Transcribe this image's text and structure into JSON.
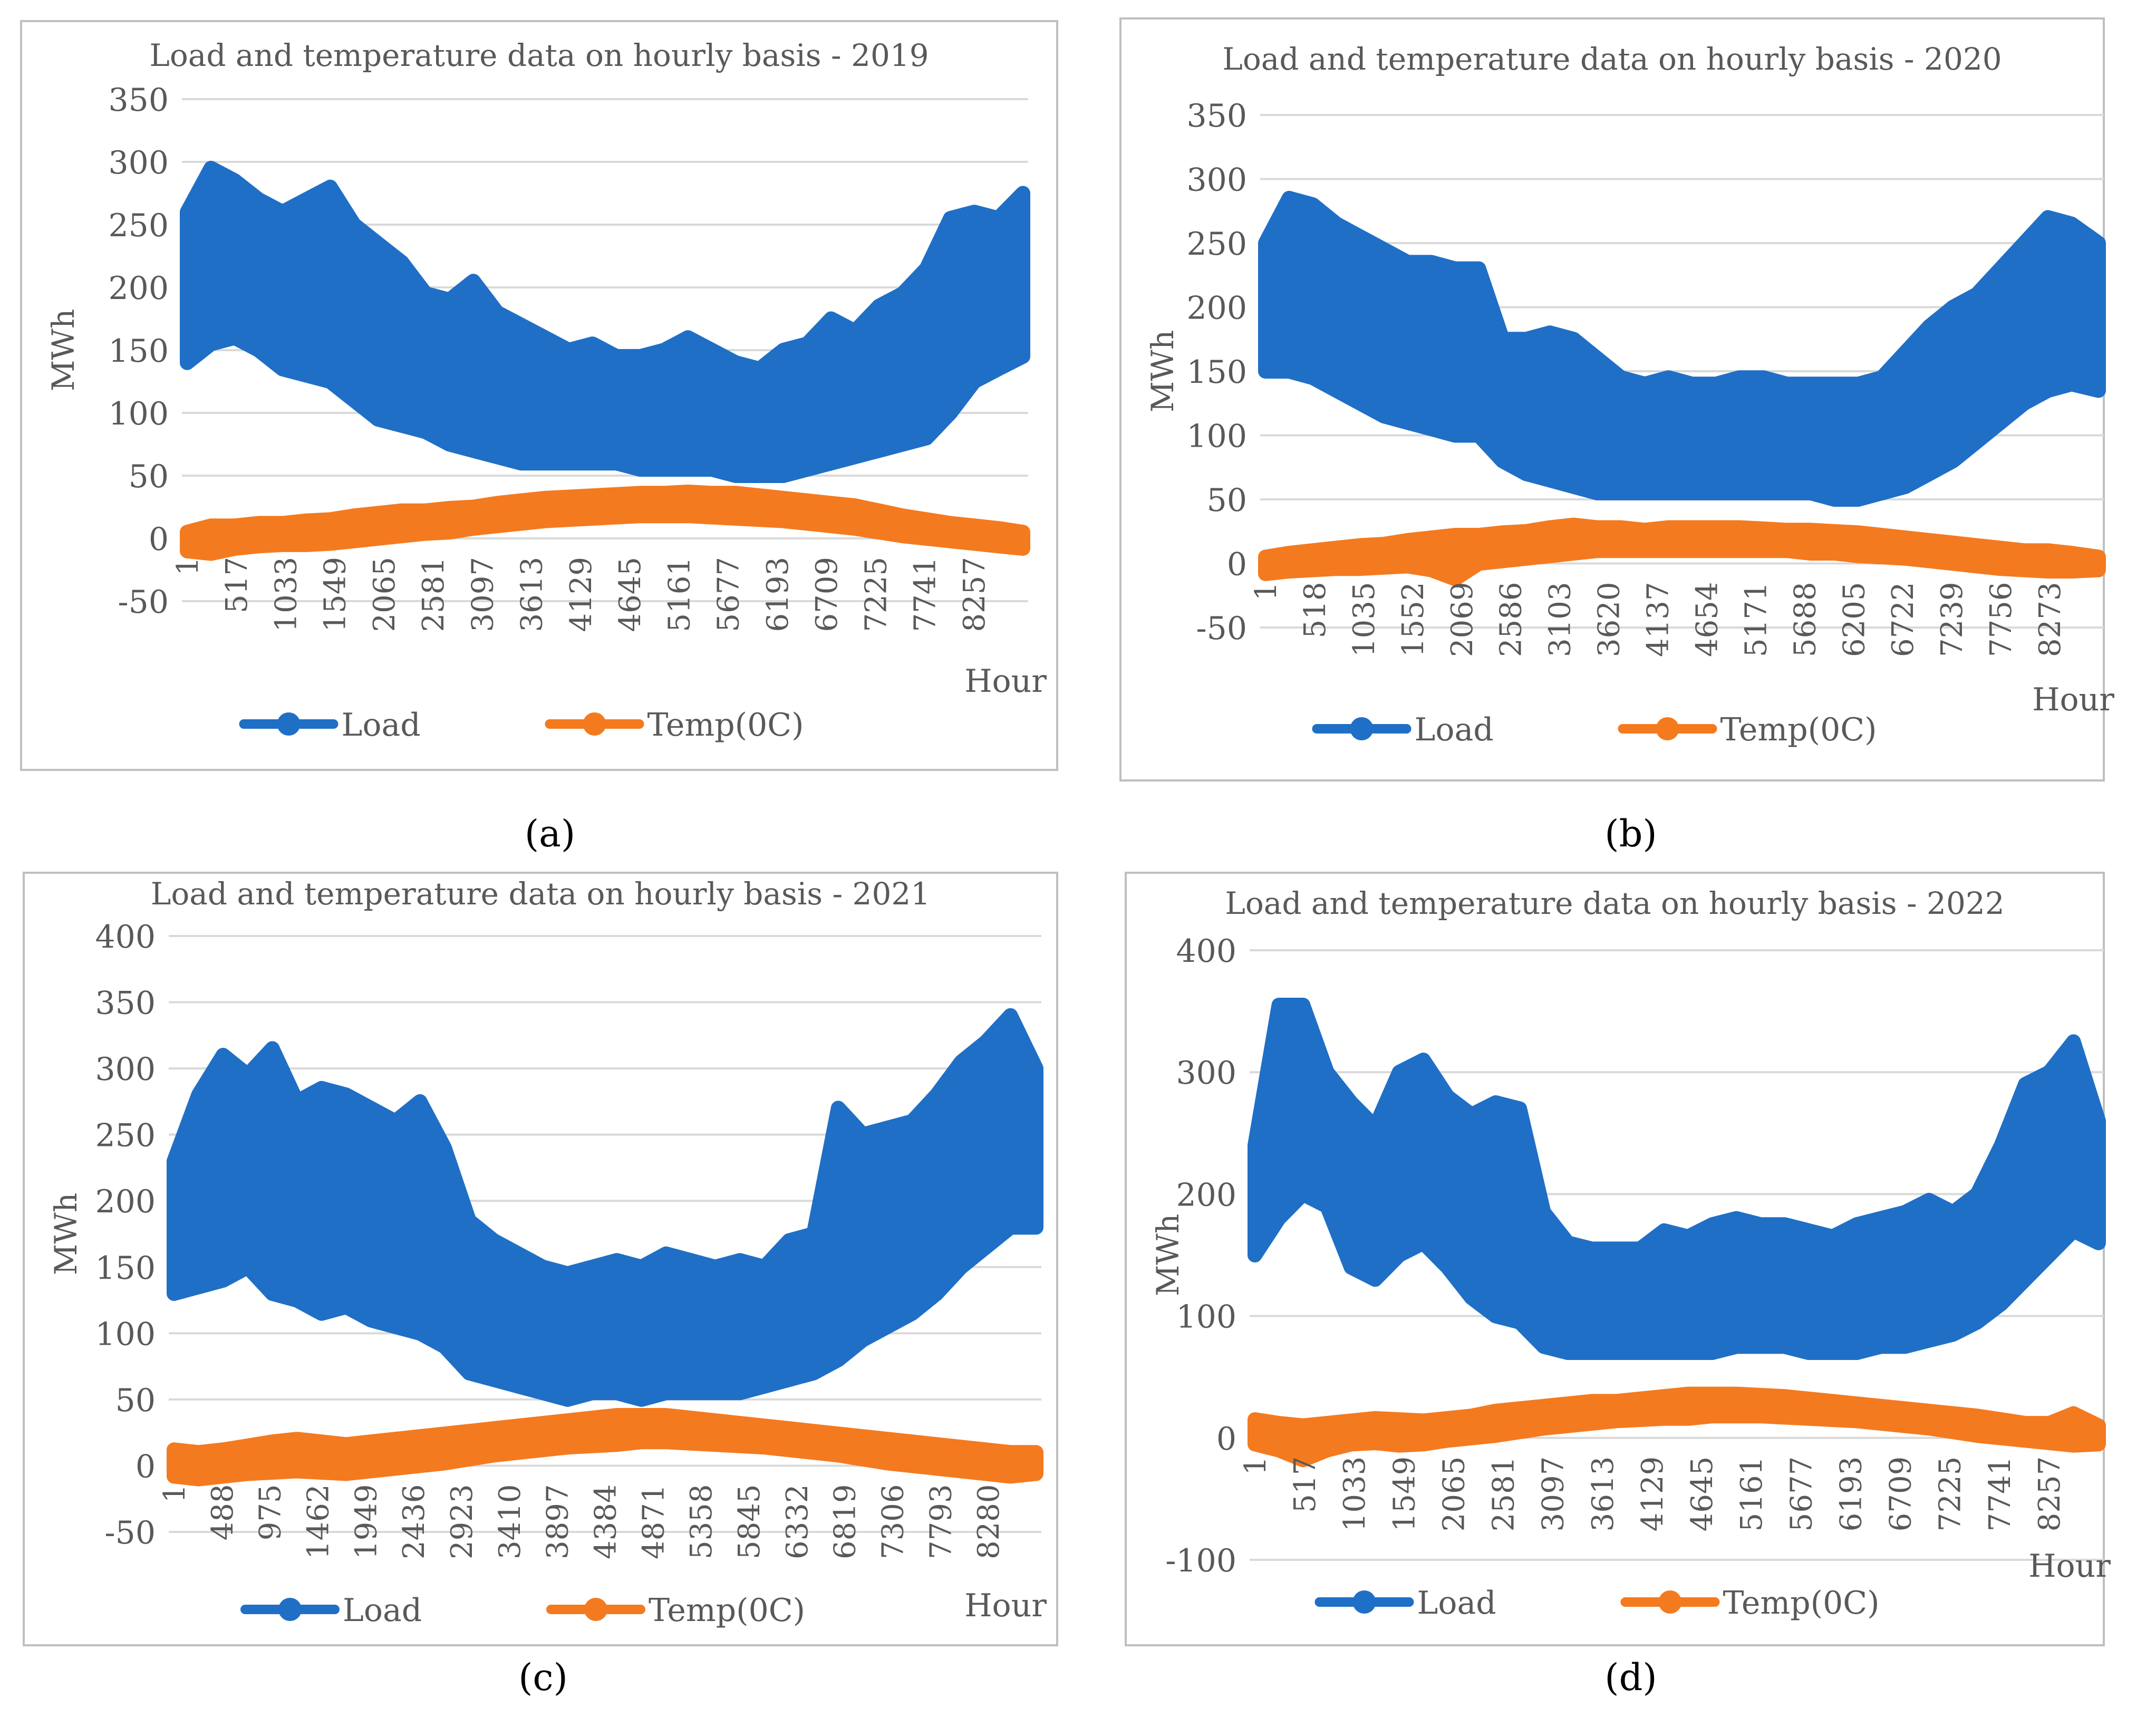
{
  "figure": {
    "panel_captions": [
      "(a)",
      "(b)",
      "(c)",
      "(d)"
    ],
    "colors": {
      "load": "#1F6FC6",
      "temp": "#F47A1F",
      "grid": "#D9D9D9",
      "text": "#595959",
      "frame": "#BFBFBF"
    }
  },
  "chart_data": [
    {
      "type": "line",
      "title": "Load and temperature data on hourly basis - 2019",
      "xlabel": "Hour",
      "ylabel": "MWh",
      "caption": "(a)",
      "ylim": [
        -50,
        350
      ],
      "ytick_step": 50,
      "xlim": [
        1,
        8760
      ],
      "x_ticks": [
        "1",
        "517",
        "1033",
        "1549",
        "2065",
        "2581",
        "3097",
        "3613",
        "4129",
        "4645",
        "5161",
        "5677",
        "6193",
        "6709",
        "7225",
        "7741",
        "8257"
      ],
      "legend": [
        "Load",
        "Temp(0C)"
      ],
      "legend_position": "bottom",
      "series": [
        {
          "name": "Load",
          "x": [
            1,
            250,
            500,
            750,
            1000,
            1250,
            1500,
            1750,
            2000,
            2250,
            2500,
            2750,
            3000,
            3250,
            3500,
            3750,
            4000,
            4250,
            4500,
            4750,
            5000,
            5250,
            5500,
            5750,
            6000,
            6250,
            6500,
            6750,
            7000,
            7250,
            7500,
            7750,
            8000,
            8250,
            8500,
            8760
          ],
          "upper": [
            260,
            295,
            285,
            270,
            260,
            270,
            280,
            250,
            235,
            220,
            195,
            190,
            205,
            180,
            170,
            160,
            150,
            155,
            145,
            145,
            150,
            160,
            150,
            140,
            135,
            150,
            155,
            175,
            165,
            185,
            195,
            215,
            255,
            260,
            255,
            275
          ],
          "lower": [
            140,
            155,
            160,
            150,
            135,
            130,
            125,
            110,
            95,
            90,
            85,
            75,
            70,
            65,
            60,
            60,
            60,
            60,
            60,
            55,
            55,
            55,
            55,
            50,
            50,
            50,
            55,
            60,
            65,
            70,
            75,
            80,
            100,
            125,
            135,
            145
          ]
        },
        {
          "name": "Temp(0C)",
          "x": [
            1,
            250,
            500,
            750,
            1000,
            1250,
            1500,
            1750,
            2000,
            2250,
            2500,
            2750,
            3000,
            3250,
            3500,
            3750,
            4000,
            4250,
            4500,
            4750,
            5000,
            5250,
            5500,
            5750,
            6000,
            6250,
            6500,
            6750,
            7000,
            7250,
            7500,
            7750,
            8000,
            8250,
            8500,
            8760
          ],
          "upper": [
            5,
            10,
            10,
            12,
            12,
            14,
            15,
            18,
            20,
            22,
            22,
            24,
            25,
            28,
            30,
            32,
            33,
            34,
            35,
            36,
            36,
            37,
            36,
            36,
            34,
            32,
            30,
            28,
            26,
            22,
            18,
            15,
            12,
            10,
            8,
            5
          ],
          "lower": [
            -10,
            -12,
            -8,
            -6,
            -5,
            -5,
            -4,
            -2,
            0,
            2,
            4,
            5,
            8,
            10,
            12,
            14,
            15,
            16,
            17,
            18,
            18,
            18,
            17,
            16,
            15,
            14,
            12,
            10,
            8,
            5,
            2,
            0,
            -2,
            -4,
            -6,
            -8
          ]
        }
      ]
    },
    {
      "type": "line",
      "title": "Load and temperature data on hourly basis - 2020",
      "xlabel": "Hour",
      "ylabel": "MWh",
      "caption": "(b)",
      "ylim": [
        -50,
        350
      ],
      "ytick_step": 50,
      "xlim": [
        1,
        8784
      ],
      "x_ticks": [
        "1",
        "518",
        "1035",
        "1552",
        "2069",
        "2586",
        "3103",
        "3620",
        "4137",
        "4654",
        "5171",
        "5688",
        "6205",
        "6722",
        "7239",
        "7756",
        "8273"
      ],
      "legend": [
        "Load",
        "Temp(0C)"
      ],
      "legend_position": "bottom",
      "series": [
        {
          "name": "Load",
          "x": [
            1,
            250,
            500,
            750,
            1000,
            1250,
            1500,
            1750,
            2000,
            2250,
            2500,
            2750,
            3000,
            3250,
            3500,
            3750,
            4000,
            4250,
            4500,
            4750,
            5000,
            5250,
            5500,
            5750,
            6000,
            6250,
            6500,
            6750,
            7000,
            7250,
            7500,
            7750,
            8000,
            8250,
            8500,
            8784
          ],
          "upper": [
            250,
            285,
            280,
            265,
            255,
            245,
            235,
            235,
            230,
            230,
            175,
            175,
            180,
            175,
            160,
            145,
            140,
            145,
            140,
            140,
            145,
            145,
            140,
            140,
            140,
            140,
            145,
            165,
            185,
            200,
            210,
            230,
            250,
            270,
            265,
            250
          ],
          "lower": [
            150,
            150,
            145,
            135,
            125,
            115,
            110,
            105,
            100,
            100,
            80,
            70,
            65,
            60,
            55,
            55,
            55,
            55,
            55,
            55,
            55,
            55,
            55,
            55,
            50,
            50,
            55,
            60,
            70,
            80,
            95,
            110,
            125,
            135,
            140,
            135
          ]
        },
        {
          "name": "Temp(0C)",
          "x": [
            1,
            250,
            500,
            750,
            1000,
            1250,
            1500,
            1750,
            2000,
            2250,
            2500,
            2750,
            3000,
            3250,
            3500,
            3750,
            4000,
            4250,
            4500,
            4750,
            5000,
            5250,
            5500,
            5750,
            6000,
            6250,
            6500,
            6750,
            7000,
            7250,
            7500,
            7750,
            8000,
            8250,
            8500,
            8784
          ],
          "upper": [
            5,
            8,
            10,
            12,
            14,
            15,
            18,
            20,
            22,
            22,
            24,
            25,
            28,
            30,
            28,
            28,
            26,
            28,
            28,
            28,
            28,
            27,
            26,
            26,
            25,
            24,
            22,
            20,
            18,
            16,
            14,
            12,
            10,
            10,
            8,
            5
          ],
          "lower": [
            -8,
            -6,
            -5,
            -4,
            -4,
            -3,
            -2,
            -5,
            -12,
            0,
            2,
            4,
            6,
            8,
            10,
            10,
            10,
            10,
            10,
            10,
            10,
            10,
            10,
            8,
            8,
            6,
            5,
            4,
            2,
            0,
            -2,
            -4,
            -5,
            -6,
            -6,
            -5
          ]
        }
      ]
    },
    {
      "type": "line",
      "title": "Load and temperature data on hourly basis - 2021",
      "xlabel": "Hour",
      "ylabel": "MWh",
      "caption": "(c)",
      "ylim": [
        -50,
        400
      ],
      "ytick_step": 50,
      "xlim": [
        1,
        8760
      ],
      "x_ticks": [
        "1",
        "488",
        "975",
        "1462",
        "1949",
        "2436",
        "2923",
        "3410",
        "3897",
        "4384",
        "4871",
        "5358",
        "5845",
        "6332",
        "6819",
        "7306",
        "7793",
        "8280"
      ],
      "legend": [
        "Load",
        "Temp(0C)"
      ],
      "legend_position": "bottom",
      "series": [
        {
          "name": "Load",
          "x": [
            1,
            250,
            500,
            750,
            1000,
            1250,
            1500,
            1750,
            2000,
            2250,
            2500,
            2750,
            3000,
            3250,
            3500,
            3750,
            4000,
            4250,
            4500,
            4750,
            5000,
            5250,
            5500,
            5750,
            6000,
            6250,
            6500,
            6750,
            7000,
            7250,
            7500,
            7750,
            8000,
            8250,
            8500,
            8760
          ],
          "upper": [
            230,
            280,
            310,
            295,
            315,
            275,
            285,
            280,
            270,
            260,
            275,
            240,
            185,
            170,
            160,
            150,
            145,
            150,
            155,
            150,
            160,
            155,
            150,
            155,
            150,
            170,
            175,
            270,
            250,
            255,
            260,
            280,
            305,
            320,
            340,
            300
          ],
          "lower": [
            130,
            135,
            140,
            150,
            130,
            125,
            115,
            120,
            110,
            105,
            100,
            90,
            70,
            65,
            60,
            55,
            50,
            55,
            55,
            50,
            55,
            55,
            55,
            55,
            60,
            65,
            70,
            80,
            95,
            105,
            115,
            130,
            150,
            165,
            180,
            180
          ]
        },
        {
          "name": "Temp(0C)",
          "x": [
            1,
            250,
            500,
            750,
            1000,
            1250,
            1500,
            1750,
            2000,
            2250,
            2500,
            2750,
            3000,
            3250,
            3500,
            3750,
            4000,
            4250,
            4500,
            4750,
            5000,
            5250,
            5500,
            5750,
            6000,
            6250,
            6500,
            6750,
            7000,
            7250,
            7500,
            7750,
            8000,
            8250,
            8500,
            8760
          ],
          "upper": [
            12,
            10,
            12,
            15,
            18,
            20,
            18,
            16,
            18,
            20,
            22,
            24,
            26,
            28,
            30,
            32,
            34,
            36,
            38,
            38,
            38,
            36,
            34,
            32,
            30,
            28,
            26,
            24,
            22,
            20,
            18,
            16,
            14,
            12,
            10,
            10
          ],
          "lower": [
            -8,
            -10,
            -8,
            -6,
            -5,
            -4,
            -5,
            -6,
            -4,
            -2,
            0,
            2,
            5,
            8,
            10,
            12,
            14,
            15,
            16,
            18,
            18,
            17,
            16,
            15,
            14,
            12,
            10,
            8,
            5,
            2,
            0,
            -2,
            -4,
            -6,
            -8,
            -6
          ]
        }
      ]
    },
    {
      "type": "line",
      "title": "Load and temperature data on hourly basis - 2022",
      "xlabel": "Hour",
      "ylabel": "MWh",
      "caption": "(d)",
      "ylim": [
        -100,
        400
      ],
      "ytick_step": 100,
      "xlim": [
        1,
        8760
      ],
      "x_ticks": [
        "1",
        "517",
        "1033",
        "1549",
        "2065",
        "2581",
        "3097",
        "3613",
        "4129",
        "4645",
        "5161",
        "5677",
        "6193",
        "6709",
        "7225",
        "7741",
        "8257"
      ],
      "legend": [
        "Load",
        "Temp(0C)"
      ],
      "legend_position": "bottom",
      "series": [
        {
          "name": "Load",
          "x": [
            1,
            250,
            500,
            750,
            1000,
            1250,
            1500,
            1750,
            2000,
            2250,
            2500,
            2750,
            3000,
            3250,
            3500,
            3750,
            4000,
            4250,
            4500,
            4750,
            5000,
            5250,
            5500,
            5750,
            6000,
            6250,
            6500,
            6750,
            7000,
            7250,
            7500,
            7750,
            8000,
            8250,
            8500,
            8760
          ],
          "upper": [
            240,
            355,
            355,
            300,
            275,
            255,
            300,
            310,
            280,
            265,
            275,
            270,
            185,
            160,
            155,
            155,
            155,
            170,
            165,
            175,
            180,
            175,
            175,
            170,
            165,
            175,
            180,
            185,
            195,
            185,
            200,
            240,
            290,
            300,
            325,
            260
          ],
          "lower": [
            150,
            180,
            200,
            190,
            140,
            130,
            150,
            160,
            140,
            115,
            100,
            95,
            75,
            70,
            70,
            70,
            70,
            70,
            70,
            70,
            75,
            75,
            75,
            70,
            70,
            70,
            75,
            75,
            80,
            85,
            95,
            110,
            130,
            150,
            170,
            160
          ]
        },
        {
          "name": "Temp(0C)",
          "x": [
            1,
            250,
            500,
            750,
            1000,
            1250,
            1500,
            1750,
            2000,
            2250,
            2500,
            2750,
            3000,
            3250,
            3500,
            3750,
            4000,
            4250,
            4500,
            4750,
            5000,
            5250,
            5500,
            5750,
            6000,
            6250,
            6500,
            6750,
            7000,
            7250,
            7500,
            7750,
            8000,
            8250,
            8500,
            8760
          ],
          "upper": [
            15,
            12,
            10,
            12,
            14,
            16,
            15,
            14,
            16,
            18,
            22,
            24,
            26,
            28,
            30,
            30,
            32,
            34,
            36,
            36,
            36,
            35,
            34,
            32,
            30,
            28,
            26,
            24,
            22,
            20,
            18,
            15,
            12,
            12,
            20,
            10
          ],
          "lower": [
            -5,
            -10,
            -18,
            -10,
            -5,
            -4,
            -6,
            -5,
            -2,
            0,
            2,
            5,
            8,
            10,
            12,
            14,
            15,
            16,
            16,
            18,
            18,
            18,
            17,
            16,
            15,
            14,
            12,
            10,
            8,
            5,
            2,
            0,
            -2,
            -4,
            -6,
            -5
          ]
        }
      ]
    }
  ]
}
